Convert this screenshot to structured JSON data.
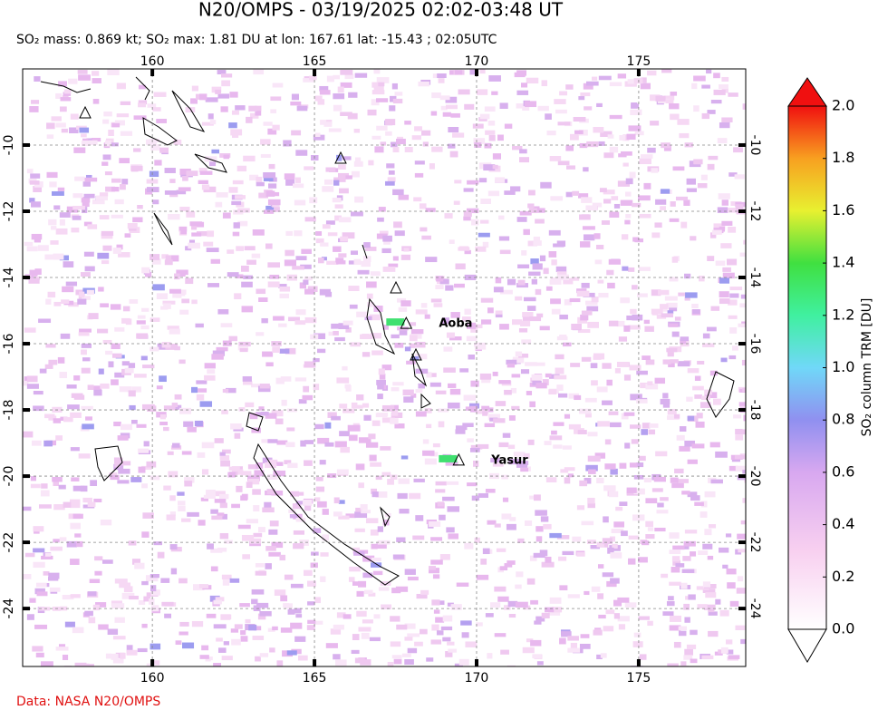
{
  "header": {
    "title": "N20/OMPS - 03/19/2025 02:02-03:48 UT",
    "subtitle": "SO₂ mass: 0.869 kt; SO₂ max: 1.81 DU at lon: 167.61 lat: -15.43 ; 02:05UTC"
  },
  "map": {
    "xlim": [
      156,
      178.3
    ],
    "ylim": [
      -25.75,
      -7.7
    ],
    "xticks": [
      160,
      165,
      170,
      175
    ],
    "yticks": [
      -10,
      -12,
      -14,
      -16,
      -18,
      -20,
      -22,
      -24
    ],
    "volcanoes": [
      {
        "name": "Aoba",
        "lon": 167.83,
        "lat": -15.4
      },
      {
        "name": "Yasur",
        "lon": 169.45,
        "lat": -19.53
      }
    ]
  },
  "colorbar": {
    "label": "SO₂ column TRM [DU]",
    "lim": [
      0,
      2
    ],
    "ticks": [
      {
        "value": 0,
        "label": "0.0"
      },
      {
        "value": 0.2,
        "label": "0.2"
      },
      {
        "value": 0.4,
        "label": "0.4"
      },
      {
        "value": 0.6,
        "label": "0.6"
      },
      {
        "value": 0.8,
        "label": "0.8"
      },
      {
        "value": 1,
        "label": "1.0"
      },
      {
        "value": 1.2,
        "label": "1.2"
      },
      {
        "value": 1.4,
        "label": "1.4"
      },
      {
        "value": 1.6,
        "label": "1.6"
      },
      {
        "value": 1.8,
        "label": "1.8"
      },
      {
        "value": 2,
        "label": "2.0"
      }
    ]
  },
  "footer": {
    "source": "Data: NASA N20/OMPS"
  }
}
